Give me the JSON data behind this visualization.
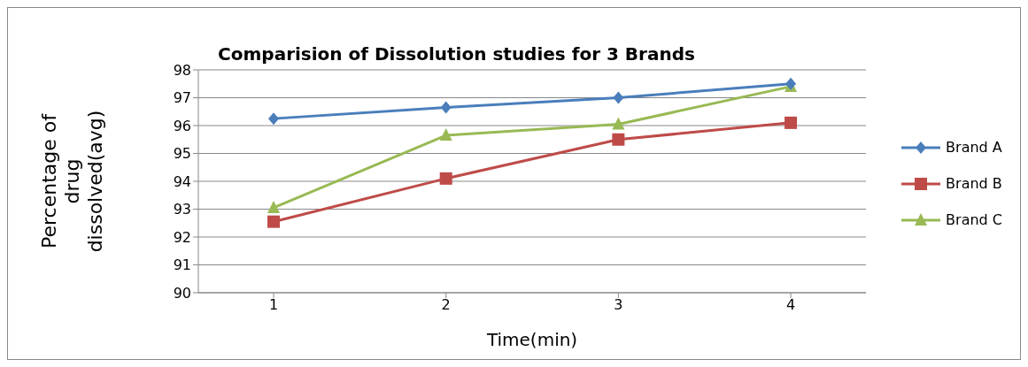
{
  "chart_data": {
    "type": "line",
    "title": "Comparision of Dissolution studies for 3 Brands",
    "xlabel": "Time(min)",
    "ylabel": "Percentage of drug dissolved(avg)",
    "categories": [
      "1",
      "2",
      "3",
      "4"
    ],
    "series": [
      {
        "name": "Brand A",
        "color": "#4a7ebb",
        "marker": "diamond",
        "values": [
          96.25,
          96.65,
          97.0,
          97.5
        ]
      },
      {
        "name": "Brand B",
        "color": "#be4b48",
        "marker": "square",
        "values": [
          92.55,
          94.1,
          95.5,
          96.1
        ]
      },
      {
        "name": "Brand C",
        "color": "#98b954",
        "marker": "triangle",
        "values": [
          93.05,
          95.65,
          96.05,
          97.4
        ]
      }
    ],
    "ylim": [
      90,
      98
    ],
    "yticks": [
      90,
      91,
      92,
      93,
      94,
      95,
      96,
      97,
      98
    ],
    "grid": "y",
    "legend": "right"
  }
}
